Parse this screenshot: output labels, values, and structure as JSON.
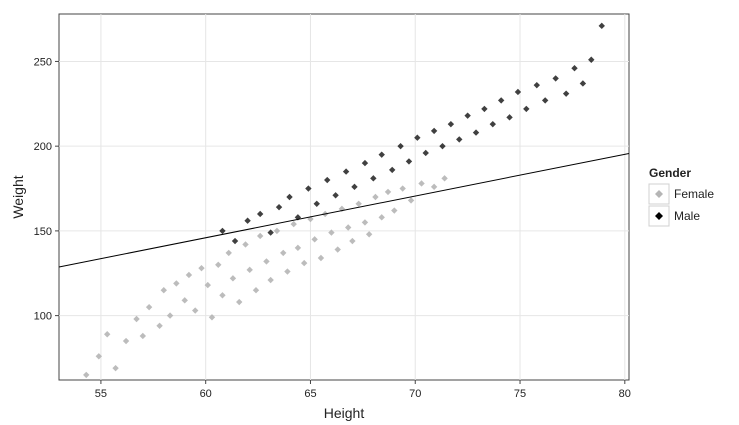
{
  "chart_data": {
    "type": "scatter",
    "xlabel": "Height",
    "ylabel": "Weight",
    "xlim": [
      53,
      80.2
    ],
    "ylim": [
      62,
      278
    ],
    "x_ticks": [
      55,
      60,
      65,
      70,
      75,
      80
    ],
    "y_ticks": [
      100,
      150,
      200,
      250
    ],
    "grid": true,
    "legend": {
      "title": "Gender",
      "placement": "right",
      "entries": [
        "Female",
        "Male"
      ]
    },
    "series": [
      {
        "name": "Female",
        "color": "#b5b5b5",
        "marker": "diamond",
        "points": [
          [
            54.3,
            65
          ],
          [
            54.9,
            76
          ],
          [
            55.3,
            89
          ],
          [
            55.7,
            69
          ],
          [
            56.2,
            85
          ],
          [
            56.7,
            98
          ],
          [
            57.0,
            88
          ],
          [
            57.3,
            105
          ],
          [
            57.8,
            94
          ],
          [
            58.0,
            115
          ],
          [
            58.3,
            100
          ],
          [
            58.6,
            119
          ],
          [
            59.0,
            109
          ],
          [
            59.2,
            124
          ],
          [
            59.5,
            103
          ],
          [
            59.8,
            128
          ],
          [
            60.1,
            118
          ],
          [
            60.3,
            99
          ],
          [
            60.6,
            130
          ],
          [
            60.8,
            112
          ],
          [
            61.1,
            137
          ],
          [
            61.3,
            122
          ],
          [
            61.6,
            108
          ],
          [
            61.9,
            142
          ],
          [
            62.1,
            127
          ],
          [
            62.4,
            115
          ],
          [
            62.6,
            147
          ],
          [
            62.9,
            132
          ],
          [
            63.1,
            121
          ],
          [
            63.4,
            150
          ],
          [
            63.7,
            137
          ],
          [
            63.9,
            126
          ],
          [
            64.2,
            154
          ],
          [
            64.4,
            140
          ],
          [
            64.7,
            131
          ],
          [
            65.0,
            157
          ],
          [
            65.2,
            145
          ],
          [
            65.5,
            134
          ],
          [
            65.7,
            160
          ],
          [
            66.0,
            149
          ],
          [
            66.3,
            139
          ],
          [
            66.5,
            163
          ],
          [
            66.8,
            152
          ],
          [
            67.0,
            144
          ],
          [
            67.3,
            166
          ],
          [
            67.6,
            155
          ],
          [
            67.8,
            148
          ],
          [
            68.1,
            170
          ],
          [
            68.4,
            158
          ],
          [
            68.7,
            173
          ],
          [
            69.0,
            162
          ],
          [
            69.4,
            175
          ],
          [
            69.8,
            168
          ],
          [
            70.3,
            178
          ],
          [
            70.9,
            176
          ],
          [
            71.4,
            181
          ]
        ]
      },
      {
        "name": "Male",
        "color": "#000000",
        "marker": "diamond",
        "points": [
          [
            60.8,
            150
          ],
          [
            61.4,
            144
          ],
          [
            62.0,
            156
          ],
          [
            62.6,
            160
          ],
          [
            63.1,
            149
          ],
          [
            63.5,
            164
          ],
          [
            64.0,
            170
          ],
          [
            64.4,
            158
          ],
          [
            64.9,
            175
          ],
          [
            65.3,
            166
          ],
          [
            65.8,
            180
          ],
          [
            66.2,
            171
          ],
          [
            66.7,
            185
          ],
          [
            67.1,
            176
          ],
          [
            67.6,
            190
          ],
          [
            68.0,
            181
          ],
          [
            68.4,
            195
          ],
          [
            68.9,
            186
          ],
          [
            69.3,
            200
          ],
          [
            69.7,
            191
          ],
          [
            70.1,
            205
          ],
          [
            70.5,
            196
          ],
          [
            70.9,
            209
          ],
          [
            71.3,
            200
          ],
          [
            71.7,
            213
          ],
          [
            72.1,
            204
          ],
          [
            72.5,
            218
          ],
          [
            72.9,
            208
          ],
          [
            73.3,
            222
          ],
          [
            73.7,
            213
          ],
          [
            74.1,
            227
          ],
          [
            74.5,
            217
          ],
          [
            74.9,
            232
          ],
          [
            75.3,
            222
          ],
          [
            75.8,
            236
          ],
          [
            76.2,
            227
          ],
          [
            76.7,
            240
          ],
          [
            77.2,
            231
          ],
          [
            77.6,
            246
          ],
          [
            78.0,
            237
          ],
          [
            78.4,
            251
          ],
          [
            78.9,
            271
          ]
        ]
      }
    ],
    "fit_line": {
      "x": [
        53,
        80.2
      ],
      "y": [
        128.7,
        195.7
      ]
    }
  }
}
